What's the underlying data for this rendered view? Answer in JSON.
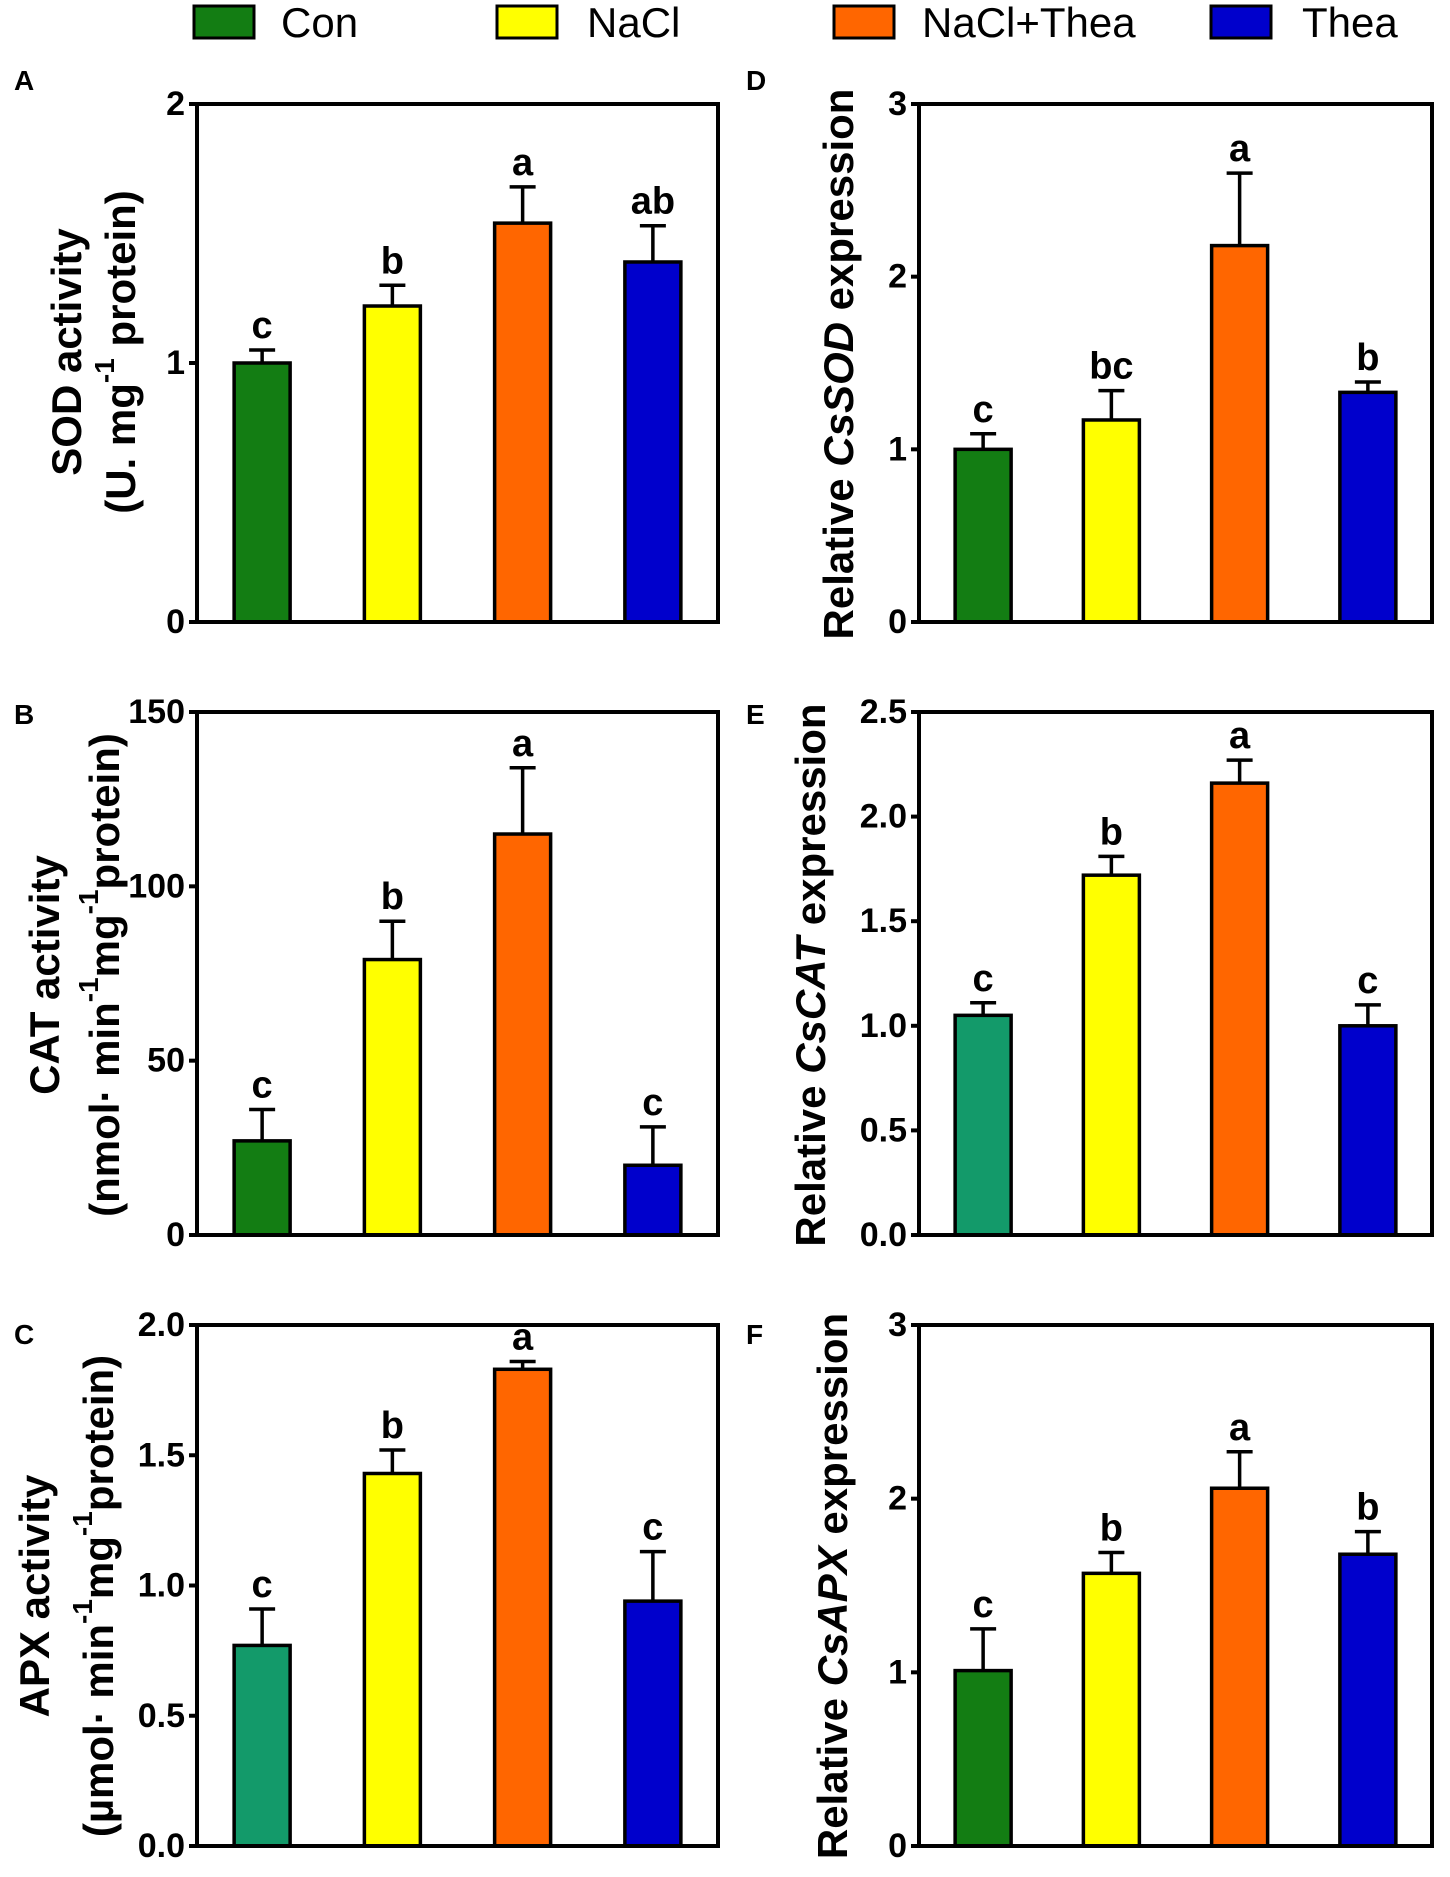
{
  "legend": {
    "items": [
      {
        "label": "Con",
        "color": "#137d13"
      },
      {
        "label": "NaCl",
        "color": "#ffff00"
      },
      {
        "label": "NaCl+Thea",
        "color": "#ff6600"
      },
      {
        "label": "Thea",
        "color": "#0000cc"
      }
    ]
  },
  "chart_data": [
    {
      "type": "bar",
      "panel": "A",
      "ylabel_lines": [
        [
          {
            "text": "SOD activity"
          }
        ],
        [
          {
            "text": "(U. mg"
          },
          {
            "text": "-1",
            "sup": true
          },
          {
            "text": " protein)"
          }
        ]
      ],
      "ylim": [
        0,
        2
      ],
      "yticks": [
        0,
        1,
        2
      ],
      "ytick_labels": [
        "0",
        "1",
        "2"
      ],
      "values": [
        1.0,
        1.22,
        1.54,
        1.39
      ],
      "errors": [
        0.05,
        0.08,
        0.14,
        0.14
      ],
      "letters": [
        "c",
        "b",
        "a",
        "ab"
      ],
      "bar_colors": [
        "#137d13",
        "#ffff00",
        "#ff6600",
        "#0000cc"
      ]
    },
    {
      "type": "bar",
      "panel": "B",
      "ylabel_lines": [
        [
          {
            "text": "CAT activity"
          }
        ],
        [
          {
            "text": "(nmol· min"
          },
          {
            "text": "-1",
            "sup": true
          },
          {
            "text": "mg"
          },
          {
            "text": "-1",
            "sup": true
          },
          {
            "text": "protein)"
          }
        ]
      ],
      "ylim": [
        0,
        150
      ],
      "yticks": [
        0,
        50,
        100,
        150
      ],
      "ytick_labels": [
        "0",
        "50",
        "100",
        "150"
      ],
      "values": [
        27,
        79,
        115,
        20
      ],
      "errors": [
        9,
        11,
        19,
        11
      ],
      "letters": [
        "c",
        "b",
        "a",
        "c"
      ],
      "bar_colors": [
        "#137d13",
        "#ffff00",
        "#ff6600",
        "#0000cc"
      ]
    },
    {
      "type": "bar",
      "panel": "C",
      "ylabel_lines": [
        [
          {
            "text": "APX activity"
          }
        ],
        [
          {
            "text": "(µmol· min"
          },
          {
            "text": "-1",
            "sup": true
          },
          {
            "text": "mg"
          },
          {
            "text": "-1",
            "sup": true
          },
          {
            "text": "protein)"
          }
        ]
      ],
      "ylim": [
        0,
        2
      ],
      "yticks": [
        0,
        0.5,
        1,
        1.5,
        2
      ],
      "ytick_labels": [
        "0.0",
        "0.5",
        "1.0",
        "1.5",
        "2.0"
      ],
      "values": [
        0.77,
        1.43,
        1.83,
        0.94
      ],
      "errors": [
        0.14,
        0.09,
        0.03,
        0.19
      ],
      "letters": [
        "c",
        "b",
        "a",
        "c"
      ],
      "bar_colors": [
        "#139a6a",
        "#ffff00",
        "#ff6600",
        "#0000cc"
      ]
    },
    {
      "type": "bar",
      "panel": "D",
      "ylabel_lines": [
        [
          {
            "text": "Relative "
          },
          {
            "text": "CsSOD",
            "it": true
          },
          {
            "text": " expression"
          }
        ]
      ],
      "ylim": [
        0,
        3
      ],
      "yticks": [
        0,
        1,
        2,
        3
      ],
      "ytick_labels": [
        "0",
        "1",
        "2",
        "3"
      ],
      "values": [
        1.0,
        1.17,
        2.18,
        1.33
      ],
      "errors": [
        0.09,
        0.17,
        0.42,
        0.06
      ],
      "letters": [
        "c",
        "bc",
        "a",
        "b"
      ],
      "bar_colors": [
        "#137d13",
        "#ffff00",
        "#ff6600",
        "#0000cc"
      ]
    },
    {
      "type": "bar",
      "panel": "E",
      "ylabel_lines": [
        [
          {
            "text": "Relative "
          },
          {
            "text": "CsCAT",
            "it": true
          },
          {
            "text": " expression"
          }
        ]
      ],
      "ylim": [
        0,
        2.5
      ],
      "yticks": [
        0,
        0.5,
        1,
        1.5,
        2,
        2.5
      ],
      "ytick_labels": [
        "0.0",
        "0.5",
        "1.0",
        "1.5",
        "2.0",
        "2.5"
      ],
      "values": [
        1.05,
        1.72,
        2.16,
        1.0
      ],
      "errors": [
        0.06,
        0.09,
        0.11,
        0.1
      ],
      "letters": [
        "c",
        "b",
        "a",
        "c"
      ],
      "bar_colors": [
        "#139a6a",
        "#ffff00",
        "#ff6600",
        "#0000cc"
      ]
    },
    {
      "type": "bar",
      "panel": "F",
      "ylabel_lines": [
        [
          {
            "text": "Relative "
          },
          {
            "text": "CsAPX",
            "it": true
          },
          {
            "text": " expression"
          }
        ]
      ],
      "ylim": [
        0,
        3
      ],
      "yticks": [
        0,
        1,
        2,
        3
      ],
      "ytick_labels": [
        "0",
        "1",
        "2",
        "3"
      ],
      "values": [
        1.01,
        1.57,
        2.06,
        1.68
      ],
      "errors": [
        0.24,
        0.12,
        0.21,
        0.13
      ],
      "letters": [
        "c",
        "b",
        "a",
        "b"
      ],
      "bar_colors": [
        "#137d13",
        "#ffff00",
        "#ff6600",
        "#0000cc"
      ]
    }
  ]
}
